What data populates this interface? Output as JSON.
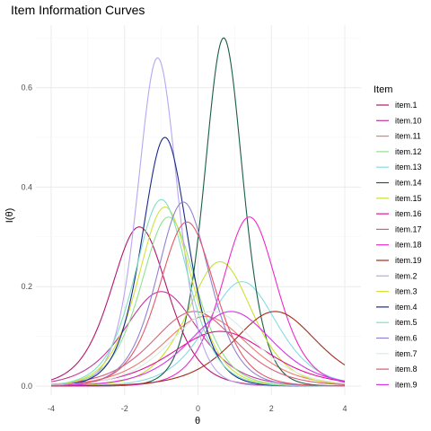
{
  "chart_data": {
    "type": "line",
    "title": "Item Information Curves",
    "xlabel": "θ",
    "ylabel": "I(θ)",
    "xlim": [
      -4,
      4
    ],
    "ylim": [
      0,
      0.7
    ],
    "x_ticks": [
      -4,
      -2,
      0,
      2,
      4
    ],
    "x_tick_labels": [
      "-4",
      "-2",
      "0",
      "2",
      "4"
    ],
    "y_ticks": [
      0.0,
      0.2,
      0.4,
      0.6
    ],
    "y_tick_labels": [
      "0.0",
      "0.2",
      "0.4",
      "0.6"
    ],
    "grid": true,
    "legend": {
      "title": "Item",
      "position": "right"
    },
    "series": [
      {
        "name": "item.1",
        "color": "#b5186c",
        "peak_theta": -1.6,
        "peak_info": 0.32,
        "discrimination": 1.13
      },
      {
        "name": "item.10",
        "color": "#c0399e",
        "peak_theta": -1.0,
        "peak_info": 0.19,
        "discrimination": 0.87
      },
      {
        "name": "item.11",
        "color": "#ec7a72",
        "peak_theta": 0.2,
        "peak_info": 0.14,
        "discrimination": 0.75
      },
      {
        "name": "item.12",
        "color": "#8ee28e",
        "peak_theta": -0.8,
        "peak_info": 0.34,
        "discrimination": 1.17
      },
      {
        "name": "item.13",
        "color": "#86dce3",
        "peak_theta": 1.2,
        "peak_info": 0.21,
        "discrimination": 0.92
      },
      {
        "name": "item.14",
        "color": "#1a5e46",
        "peak_theta": 0.7,
        "peak_info": 0.7,
        "discrimination": 1.67
      },
      {
        "name": "item.15",
        "color": "#cbe033",
        "peak_theta": 0.6,
        "peak_info": 0.25,
        "discrimination": 1.0
      },
      {
        "name": "item.16",
        "color": "#e0119a",
        "peak_theta": 0.6,
        "peak_info": 0.11,
        "discrimination": 0.66
      },
      {
        "name": "item.17",
        "color": "#d7617c",
        "peak_theta": -0.1,
        "peak_info": 0.15,
        "discrimination": 0.77
      },
      {
        "name": "item.18",
        "color": "#ee2ac8",
        "peak_theta": 1.4,
        "peak_info": 0.34,
        "discrimination": 1.17
      },
      {
        "name": "item.19",
        "color": "#a82c1a",
        "peak_theta": 2.1,
        "peak_info": 0.15,
        "discrimination": 0.77
      },
      {
        "name": "item.2",
        "color": "#b8a6f2",
        "peak_theta": -1.1,
        "peak_info": 0.66,
        "discrimination": 1.62
      },
      {
        "name": "item.3",
        "color": "#d3e13a",
        "peak_theta": -0.9,
        "peak_info": 0.36,
        "discrimination": 1.2
      },
      {
        "name": "item.4",
        "color": "#1b2a8c",
        "peak_theta": -0.9,
        "peak_info": 0.5,
        "discrimination": 1.41
      },
      {
        "name": "item.5",
        "color": "#7fe0c0",
        "peak_theta": -1.0,
        "peak_info": 0.375,
        "discrimination": 1.22
      },
      {
        "name": "item.6",
        "color": "#8f83d2",
        "peak_theta": -0.4,
        "peak_info": 0.37,
        "discrimination": 1.22
      },
      {
        "name": "item.7",
        "color": "#d9eee2",
        "peak_theta": 0.4,
        "peak_info": 0.15,
        "discrimination": 0.77
      },
      {
        "name": "item.8",
        "color": "#e5566a",
        "peak_theta": -0.3,
        "peak_info": 0.33,
        "discrimination": 1.15
      },
      {
        "name": "item.9",
        "color": "#d436e4",
        "peak_theta": 0.9,
        "peak_info": 0.15,
        "discrimination": 0.77
      }
    ]
  }
}
